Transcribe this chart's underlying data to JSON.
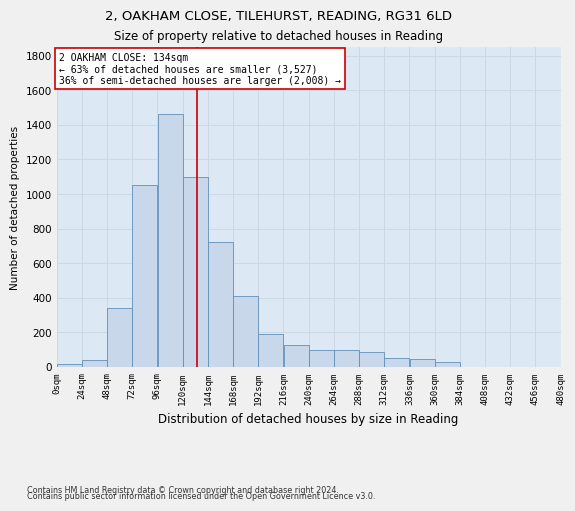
{
  "title_line1": "2, OAKHAM CLOSE, TILEHURST, READING, RG31 6LD",
  "title_line2": "Size of property relative to detached houses in Reading",
  "xlabel": "Distribution of detached houses by size in Reading",
  "ylabel": "Number of detached properties",
  "bar_color": "#c8d8ea",
  "bar_edge_color": "#6090b8",
  "bins": [
    0,
    24,
    48,
    72,
    96,
    120,
    144,
    168,
    192,
    216,
    240,
    264,
    288,
    312,
    336,
    360,
    384,
    408,
    432,
    456,
    480
  ],
  "values": [
    20,
    40,
    340,
    1050,
    1460,
    1100,
    720,
    410,
    190,
    130,
    100,
    100,
    85,
    50,
    45,
    30,
    0,
    0,
    0,
    0
  ],
  "property_size": 134,
  "annotation_line1": "2 OAKHAM CLOSE: 134sqm",
  "annotation_line2": "← 63% of detached houses are smaller (3,527)",
  "annotation_line3": "36% of semi-detached houses are larger (2,008) →",
  "vline_color": "#cc0000",
  "annotation_box_color": "#ffffff",
  "annotation_box_edge": "#cc0000",
  "ylim": [
    0,
    1850
  ],
  "yticks": [
    0,
    200,
    400,
    600,
    800,
    1000,
    1200,
    1400,
    1600,
    1800
  ],
  "grid_color": "#ccd8e4",
  "footnote_line1": "Contains HM Land Registry data © Crown copyright and database right 2024.",
  "footnote_line2": "Contains public sector information licensed under the Open Government Licence v3.0.",
  "bg_color": "#dce8f4",
  "fig_bg_color": "#f0f0f0"
}
